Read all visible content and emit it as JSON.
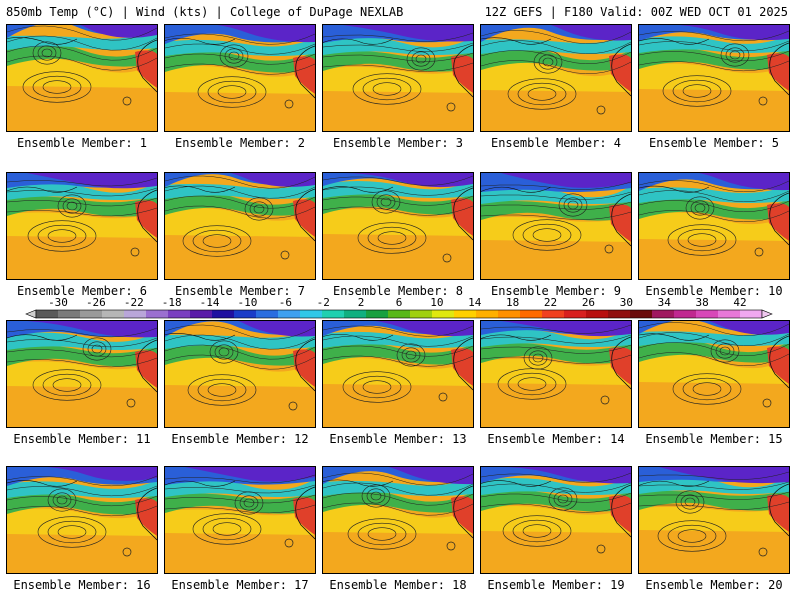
{
  "header": {
    "left": "850mb Temp (°C) | Wind (kts) | College of DuPage NEXLAB",
    "right": "12Z GEFS | F180 Valid: 00Z WED OCT 01 2025"
  },
  "members": [
    {
      "label": "Ensemble Member: 1"
    },
    {
      "label": "Ensemble Member: 2"
    },
    {
      "label": "Ensemble Member: 3"
    },
    {
      "label": "Ensemble Member: 4"
    },
    {
      "label": "Ensemble Member: 5"
    },
    {
      "label": "Ensemble Member: 6"
    },
    {
      "label": "Ensemble Member: 7"
    },
    {
      "label": "Ensemble Member: 8"
    },
    {
      "label": "Ensemble Member: 9"
    },
    {
      "label": "Ensemble Member: 10"
    },
    {
      "label": "Ensemble Member: 11"
    },
    {
      "label": "Ensemble Member: 12"
    },
    {
      "label": "Ensemble Member: 13"
    },
    {
      "label": "Ensemble Member: 14"
    },
    {
      "label": "Ensemble Member: 15"
    },
    {
      "label": "Ensemble Member: 16"
    },
    {
      "label": "Ensemble Member: 17"
    },
    {
      "label": "Ensemble Member: 18"
    },
    {
      "label": "Ensemble Member: 19"
    },
    {
      "label": "Ensemble Member: 20"
    }
  ],
  "colorbar": {
    "ticks": [
      "-30",
      "-26",
      "-22",
      "-18",
      "-14",
      "-10",
      "-6",
      "-2",
      "2",
      "6",
      "10",
      "14",
      "18",
      "22",
      "26",
      "30",
      "34",
      "38",
      "42"
    ],
    "colors": [
      "#5a5a5a",
      "#7b7b7b",
      "#9a9a9a",
      "#b6b6b6",
      "#b9a6d9",
      "#9b6fd0",
      "#7a3fc0",
      "#5a1aa8",
      "#2010a0",
      "#1a3cc8",
      "#2a6de0",
      "#3fa0f0",
      "#30c8e8",
      "#20d0b0",
      "#10b080",
      "#18a040",
      "#58b818",
      "#a0d010",
      "#e0e810",
      "#ffd000",
      "#ffb000",
      "#ff9000",
      "#ff6a00",
      "#f04020",
      "#d82020",
      "#b81010",
      "#901010",
      "#6a0a0a",
      "#a01860",
      "#c02890",
      "#d848b8",
      "#e878d8",
      "#f0a8f0"
    ]
  },
  "scheme": {
    "cold": "#5b24c8",
    "blue": "#2a5fd8",
    "cyan": "#2fc4c4",
    "green": "#3fb04a",
    "yellow": "#f6d21a",
    "orange": "#f3a81e",
    "red": "#e0402a"
  }
}
